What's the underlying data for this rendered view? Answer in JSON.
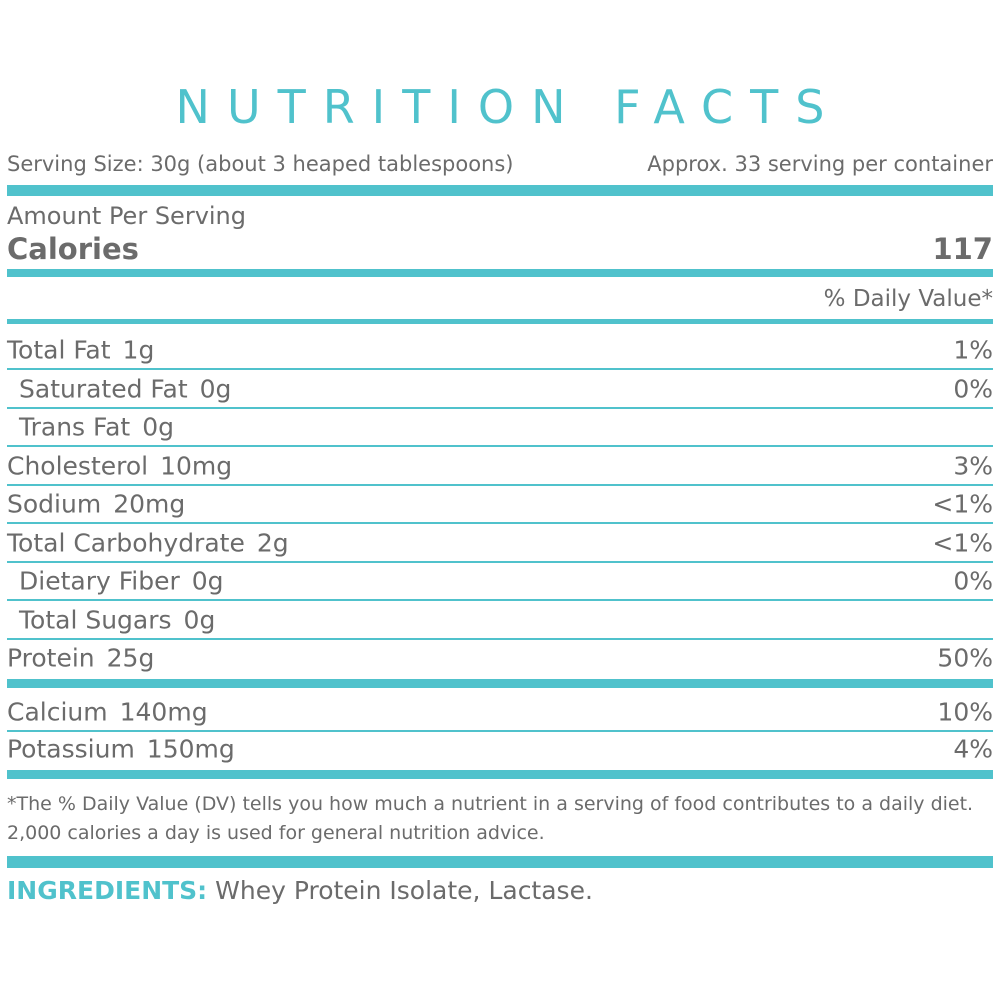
{
  "header": {
    "title": "NUTRITION FACTS",
    "serving_size": "Serving Size: 30g (about 3 heaped tablespoons)",
    "servings": "Approx. 33 serving per container"
  },
  "calories": {
    "amount_label": "Amount Per Serving",
    "label": "Calories",
    "value": "117"
  },
  "daily_value_header": "% Daily Value*",
  "nutrients": [
    {
      "name": "Total Fat",
      "amount": "1g",
      "dv": "1%"
    },
    {
      "name": "Saturated Fat",
      "amount": "0g",
      "dv": "0%",
      "sub": true
    },
    {
      "name": "Trans Fat",
      "amount": "0g",
      "sub": true
    },
    {
      "name": "Cholesterol",
      "amount": "10mg",
      "dv": "3%"
    },
    {
      "name": "Sodium",
      "amount": "20mg",
      "dv": "<1%"
    },
    {
      "name": "Total Carbohydrate",
      "amount": "2g",
      "dv": "<1%"
    },
    {
      "name": "Dietary Fiber",
      "amount": "0g",
      "dv": "0%",
      "sub": true
    },
    {
      "name": "Total Sugars",
      "amount": "0g",
      "sub": true
    },
    {
      "name": "Protein",
      "amount": "25g",
      "dv": "50%"
    }
  ],
  "minerals": [
    {
      "name": "Calcium",
      "amount": "140mg",
      "dv": "10%"
    },
    {
      "name": "Potassium",
      "amount": "150mg",
      "dv": "4%"
    }
  ],
  "footnote": "*The % Daily Value (DV) tells you how much a nutrient in a serving of food contributes to a daily diet. 2,000 calories a day is used for general nutrition advice.",
  "ingredients": {
    "label": "INGREDIENTS:",
    "text": "Whey Protein Isolate, Lactase."
  }
}
